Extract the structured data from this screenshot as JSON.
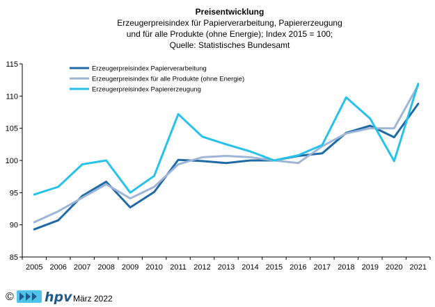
{
  "chart_data": {
    "type": "line",
    "title": "Preisentwicklung",
    "subtitle": [
      "Erzeugerpreisindex  für Papierverarbeitung,  Papiererzeugung",
      "und für alle Produkte (ohne Energie); Index 2015 = 100;",
      "Quelle: Statistisches Bundesamt"
    ],
    "x": [
      "2005",
      "2006",
      "2007",
      "2008",
      "2009",
      "2010",
      "2011",
      "2012",
      "2013",
      "2014",
      "2015",
      "2016",
      "2017",
      "2018",
      "2019",
      "2020",
      "2021"
    ],
    "ylim": [
      85,
      115
    ],
    "yticks": [
      85,
      90,
      95,
      100,
      105,
      110,
      115
    ],
    "grid": false,
    "legend_position": "top-left",
    "series": [
      {
        "name": "Erzeugerpreisindex Papierverarbeitung",
        "color": "#1f6aa5",
        "values": [
          89.3,
          90.7,
          94.5,
          96.7,
          92.7,
          95.1,
          100.1,
          99.9,
          99.6,
          100.0,
          100.0,
          100.7,
          101.1,
          104.3,
          105.4,
          103.6,
          108.8
        ]
      },
      {
        "name": "Erzeugerpreisindex für alle Produkte (ohne Energie)",
        "color": "#9eb5d6",
        "values": [
          90.4,
          92.1,
          94.2,
          96.3,
          94.1,
          95.9,
          99.4,
          100.5,
          100.7,
          100.5,
          100.0,
          99.6,
          102.2,
          104.2,
          105.0,
          105.0,
          111.7
        ]
      },
      {
        "name": "Erzeugerpreisindex Papiererzeugung",
        "color": "#27c1ea",
        "values": [
          94.7,
          95.9,
          99.4,
          100.0,
          95.0,
          97.6,
          107.2,
          103.7,
          102.5,
          101.4,
          100.0,
          100.8,
          102.4,
          109.8,
          106.5,
          99.9,
          111.9
        ]
      }
    ]
  },
  "footer": {
    "copyright": "©",
    "logo": "hpv",
    "date": "März 2022"
  }
}
